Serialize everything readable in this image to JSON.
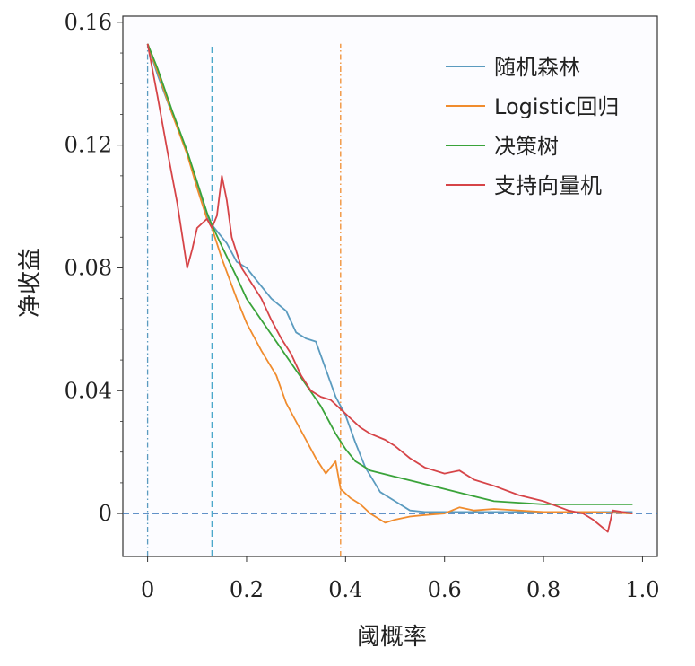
{
  "chart_data": {
    "type": "line",
    "xlabel": "阈概率",
    "ylabel": "净收益",
    "xlim": [
      -0.05,
      1.03
    ],
    "ylim": [
      -0.014,
      0.162
    ],
    "x_ticks": [
      "0",
      "0.2",
      "0.4",
      "0.6",
      "0.8",
      "1.0"
    ],
    "x_tick_values": [
      0,
      0.2,
      0.4,
      0.6,
      0.8,
      1.0
    ],
    "y_ticks": [
      "0.16",
      "0.12",
      "0.08",
      "0.04",
      "0"
    ],
    "y_tick_values": [
      0.16,
      0.12,
      0.08,
      0.04,
      0
    ],
    "legend_position": "top-right",
    "series": [
      {
        "name": "随机森林",
        "color": "#5b9bbf",
        "points": [
          [
            0,
            0.153
          ],
          [
            0.02,
            0.143
          ],
          [
            0.05,
            0.13
          ],
          [
            0.08,
            0.118
          ],
          [
            0.1,
            0.107
          ],
          [
            0.12,
            0.097
          ],
          [
            0.13,
            0.094
          ],
          [
            0.14,
            0.092
          ],
          [
            0.16,
            0.088
          ],
          [
            0.18,
            0.082
          ],
          [
            0.2,
            0.08
          ],
          [
            0.22,
            0.076
          ],
          [
            0.25,
            0.07
          ],
          [
            0.28,
            0.066
          ],
          [
            0.3,
            0.059
          ],
          [
            0.32,
            0.057
          ],
          [
            0.34,
            0.056
          ],
          [
            0.36,
            0.047
          ],
          [
            0.38,
            0.038
          ],
          [
            0.4,
            0.032
          ],
          [
            0.42,
            0.023
          ],
          [
            0.44,
            0.015
          ],
          [
            0.47,
            0.007
          ],
          [
            0.5,
            0.004
          ],
          [
            0.53,
            0.001
          ],
          [
            0.56,
            0.0005
          ],
          [
            0.6,
            0.0005
          ],
          [
            0.65,
            0.0005
          ],
          [
            0.7,
            0.0005
          ],
          [
            0.8,
            0.0005
          ],
          [
            0.9,
            0.0005
          ],
          [
            0.98,
            0.0005
          ]
        ]
      },
      {
        "name": "Logistic回归",
        "color": "#f08c2e",
        "points": [
          [
            0,
            0.153
          ],
          [
            0.02,
            0.144
          ],
          [
            0.05,
            0.13
          ],
          [
            0.08,
            0.117
          ],
          [
            0.1,
            0.106
          ],
          [
            0.12,
            0.096
          ],
          [
            0.13,
            0.093
          ],
          [
            0.15,
            0.083
          ],
          [
            0.18,
            0.07
          ],
          [
            0.2,
            0.062
          ],
          [
            0.23,
            0.053
          ],
          [
            0.26,
            0.045
          ],
          [
            0.28,
            0.036
          ],
          [
            0.3,
            0.03
          ],
          [
            0.32,
            0.024
          ],
          [
            0.34,
            0.018
          ],
          [
            0.36,
            0.013
          ],
          [
            0.38,
            0.017
          ],
          [
            0.39,
            0.008
          ],
          [
            0.41,
            0.005
          ],
          [
            0.43,
            0.003
          ],
          [
            0.45,
            0.0
          ],
          [
            0.48,
            -0.003
          ],
          [
            0.5,
            -0.002
          ],
          [
            0.53,
            -0.001
          ],
          [
            0.56,
            -0.0005
          ],
          [
            0.6,
            0.0
          ],
          [
            0.63,
            0.002
          ],
          [
            0.66,
            0.001
          ],
          [
            0.7,
            0.0015
          ],
          [
            0.8,
            0.0005
          ],
          [
            0.9,
            0.0005
          ],
          [
            0.98,
            0.0
          ]
        ]
      },
      {
        "name": "决策树",
        "color": "#3aa33a",
        "points": [
          [
            0,
            0.153
          ],
          [
            0.02,
            0.145
          ],
          [
            0.05,
            0.131
          ],
          [
            0.08,
            0.118
          ],
          [
            0.1,
            0.108
          ],
          [
            0.12,
            0.098
          ],
          [
            0.13,
            0.094
          ],
          [
            0.15,
            0.087
          ],
          [
            0.18,
            0.077
          ],
          [
            0.2,
            0.07
          ],
          [
            0.23,
            0.063
          ],
          [
            0.26,
            0.056
          ],
          [
            0.29,
            0.049
          ],
          [
            0.32,
            0.042
          ],
          [
            0.35,
            0.035
          ],
          [
            0.38,
            0.026
          ],
          [
            0.4,
            0.021
          ],
          [
            0.42,
            0.017
          ],
          [
            0.45,
            0.014
          ],
          [
            0.5,
            0.012
          ],
          [
            0.55,
            0.01
          ],
          [
            0.6,
            0.008
          ],
          [
            0.65,
            0.006
          ],
          [
            0.7,
            0.004
          ],
          [
            0.75,
            0.0035
          ],
          [
            0.8,
            0.003
          ],
          [
            0.85,
            0.003
          ],
          [
            0.9,
            0.003
          ],
          [
            0.95,
            0.003
          ],
          [
            0.98,
            0.003
          ]
        ]
      },
      {
        "name": "支持向量机",
        "color": "#d64448",
        "points": [
          [
            0,
            0.153
          ],
          [
            0.02,
            0.136
          ],
          [
            0.04,
            0.118
          ],
          [
            0.06,
            0.101
          ],
          [
            0.08,
            0.08
          ],
          [
            0.09,
            0.086
          ],
          [
            0.1,
            0.093
          ],
          [
            0.12,
            0.096
          ],
          [
            0.13,
            0.093
          ],
          [
            0.14,
            0.097
          ],
          [
            0.15,
            0.11
          ],
          [
            0.16,
            0.102
          ],
          [
            0.17,
            0.09
          ],
          [
            0.19,
            0.08
          ],
          [
            0.21,
            0.075
          ],
          [
            0.23,
            0.07
          ],
          [
            0.25,
            0.063
          ],
          [
            0.27,
            0.057
          ],
          [
            0.29,
            0.052
          ],
          [
            0.31,
            0.045
          ],
          [
            0.33,
            0.04
          ],
          [
            0.35,
            0.038
          ],
          [
            0.37,
            0.037
          ],
          [
            0.39,
            0.034
          ],
          [
            0.41,
            0.031
          ],
          [
            0.43,
            0.028
          ],
          [
            0.45,
            0.026
          ],
          [
            0.48,
            0.024
          ],
          [
            0.5,
            0.022
          ],
          [
            0.53,
            0.018
          ],
          [
            0.56,
            0.015
          ],
          [
            0.6,
            0.013
          ],
          [
            0.63,
            0.014
          ],
          [
            0.66,
            0.011
          ],
          [
            0.7,
            0.009
          ],
          [
            0.75,
            0.006
          ],
          [
            0.8,
            0.004
          ],
          [
            0.85,
            0.001
          ],
          [
            0.88,
            0.0
          ],
          [
            0.9,
            -0.002
          ],
          [
            0.93,
            -0.006
          ],
          [
            0.94,
            0.001
          ],
          [
            0.96,
            0.0005
          ],
          [
            0.98,
            0.0
          ]
        ]
      }
    ],
    "reference_lines": [
      {
        "orientation": "horizontal",
        "value": 0,
        "color": "#2f6fb5",
        "style": "dashed"
      },
      {
        "orientation": "vertical",
        "value": 0.0,
        "color": "#5b9bbf",
        "style": "dashdot"
      },
      {
        "orientation": "vertical",
        "value": 0.13,
        "color": "#4aa7c9",
        "style": "dashed"
      },
      {
        "orientation": "vertical",
        "value": 0.39,
        "color": "#f08c2e",
        "style": "dashdot"
      }
    ]
  }
}
